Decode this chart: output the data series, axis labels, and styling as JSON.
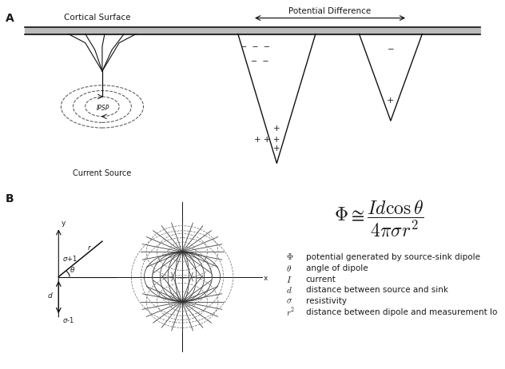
{
  "bg_color": "#ffffff",
  "label_A": "A",
  "label_B": "B",
  "cortical_surface_label": "Cortical Surface",
  "potential_diff_label": "Potential Difference",
  "ipsp_label": "IPSP",
  "current_source_label": "Current Source",
  "text_color": "#1a1a1a",
  "line_color": "#111111",
  "gray_color": "#888888",
  "legend_items": [
    [
      "Φ",
      "potential generated by source-sink dipole"
    ],
    [
      "θ",
      "angle of dipole"
    ],
    [
      "I",
      "current"
    ],
    [
      "d",
      "distance between source and sink"
    ],
    [
      "σ",
      "resistivity"
    ],
    [
      "r²",
      "distance between dipole and measurement lo"
    ]
  ]
}
